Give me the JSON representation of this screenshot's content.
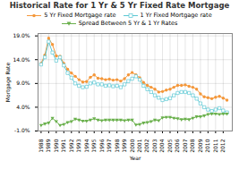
{
  "chart_data": {
    "type": "line",
    "title": "Historical Rate for 1 Yr & 5 Yr Fixed Rate Mortgage",
    "xlabel": "Year",
    "ylabel": "Mortgage Rate",
    "x": [
      1988.0,
      1988.5,
      1989.0,
      1989.5,
      1990.0,
      1990.5,
      1991.0,
      1991.5,
      1992.0,
      1992.5,
      1993.0,
      1993.5,
      1994.0,
      1994.5,
      1995.0,
      1995.5,
      1996.0,
      1996.5,
      1997.0,
      1997.5,
      1998.0,
      1998.5,
      1999.0,
      1999.5,
      2000.0,
      2000.5,
      2001.0,
      2001.5,
      2002.0,
      2002.5,
      2003.0,
      2003.5,
      2004.0,
      2004.5,
      2005.0,
      2005.5,
      2006.0,
      2006.5,
      2007.0,
      2007.5,
      2008.0,
      2008.5,
      2009.0,
      2009.5,
      2010.0,
      2010.5,
      2011.0,
      2011.5,
      2012.0,
      2012.5
    ],
    "series": [
      {
        "name": "5 Yr Fixed Mortgage rate",
        "color": "#f4973a",
        "marker": "circle",
        "values": [
          13.2,
          15.0,
          18.5,
          17.2,
          14.8,
          14.7,
          13.2,
          12.0,
          11.2,
          10.5,
          9.8,
          9.3,
          9.4,
          10.3,
          10.8,
          10.1,
          10.0,
          9.8,
          9.9,
          9.7,
          9.8,
          9.5,
          10.0,
          10.8,
          11.3,
          10.8,
          10.2,
          9.2,
          8.6,
          8.2,
          7.8,
          7.2,
          7.3,
          7.6,
          7.8,
          8.2,
          8.6,
          8.6,
          8.7,
          8.4,
          8.2,
          7.8,
          6.8,
          6.2,
          6.0,
          5.8,
          6.1,
          6.3,
          5.9,
          5.5
        ]
      },
      {
        "name": "1 Yr Fixed Mortgage rate",
        "color": "#5bc8d4",
        "marker": "square",
        "values": [
          13.0,
          14.5,
          17.8,
          15.5,
          13.8,
          14.5,
          12.8,
          11.2,
          10.2,
          9.0,
          8.5,
          8.2,
          8.3,
          9.0,
          9.2,
          8.8,
          8.8,
          8.5,
          8.6,
          8.4,
          8.5,
          8.2,
          8.8,
          9.5,
          10.0,
          10.5,
          9.8,
          8.5,
          7.8,
          7.2,
          6.5,
          6.0,
          5.5,
          5.7,
          5.9,
          6.5,
          7.0,
          7.2,
          7.2,
          7.0,
          6.5,
          5.8,
          4.8,
          4.0,
          3.5,
          3.2,
          3.5,
          3.8,
          3.3,
          2.9
        ]
      },
      {
        "name": "Spread Between 5 Yr & 1 Yr Rates",
        "color": "#6ab04c",
        "marker": "triangle-down",
        "values": [
          0.2,
          0.5,
          0.7,
          1.7,
          1.0,
          0.2,
          0.4,
          0.8,
          1.0,
          1.5,
          1.3,
          1.1,
          1.1,
          1.3,
          1.6,
          1.3,
          1.2,
          1.3,
          1.3,
          1.3,
          1.3,
          1.3,
          1.2,
          1.3,
          1.3,
          0.3,
          0.4,
          0.7,
          0.8,
          1.0,
          1.3,
          1.2,
          1.8,
          1.9,
          1.9,
          1.7,
          1.6,
          1.4,
          1.5,
          1.4,
          1.7,
          2.0,
          2.0,
          2.2,
          2.5,
          2.6,
          2.6,
          2.5,
          2.6,
          2.6
        ]
      }
    ],
    "xlim": [
      1987.6,
      2013.2
    ],
    "xticks": [
      1988,
      1989,
      1990,
      1991,
      1992,
      1993,
      1994,
      1995,
      1996,
      1997,
      1998,
      1999,
      2000,
      2001,
      2002,
      2003,
      2004,
      2005,
      2006,
      2007,
      2008,
      2009,
      2010,
      2011,
      2012
    ],
    "ylim": [
      -1.0,
      19.5
    ],
    "yticks": [
      {
        "value": -1.0,
        "label": "-1.0%"
      },
      {
        "value": 4.0,
        "label": "4.0%"
      },
      {
        "value": 9.0,
        "label": "9.0%"
      },
      {
        "value": 14.0,
        "label": "14.0%"
      },
      {
        "value": 19.0,
        "label": "19.0%"
      }
    ],
    "grid": true,
    "legend": "upper center"
  }
}
